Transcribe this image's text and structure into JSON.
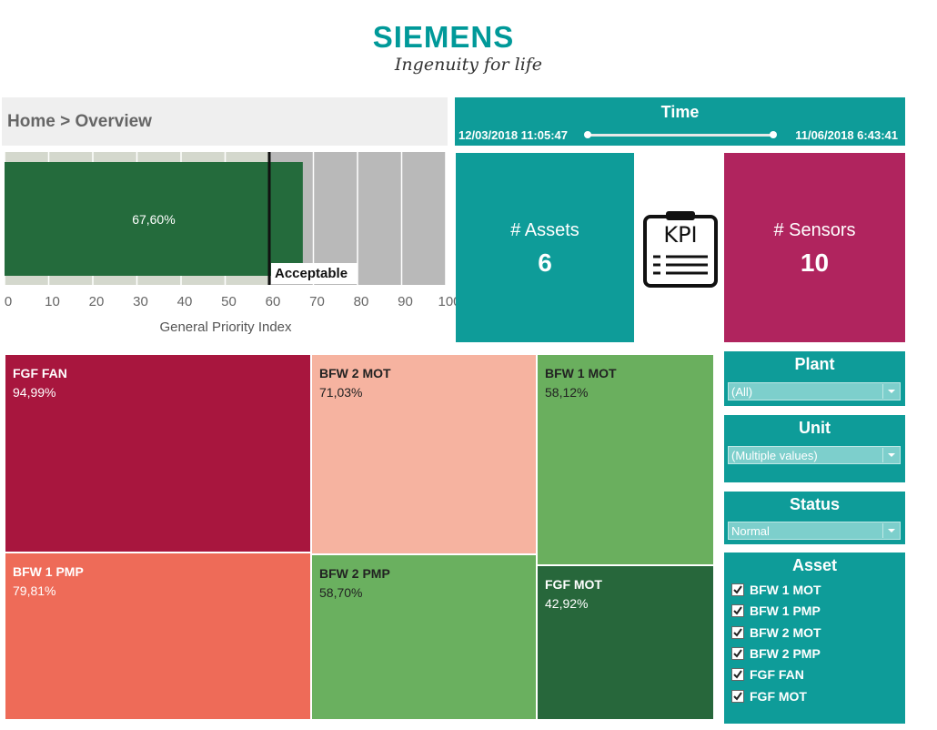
{
  "header": {
    "brand": "SIEMENS",
    "tagline": "Ingenuity for life"
  },
  "breadcrumb": "Home > Overview",
  "time": {
    "title": "Time",
    "start": "12/03/2018 11:05:47",
    "end": "11/06/2018 6:43:41"
  },
  "chart_data": {
    "type": "bullet",
    "value": 67.6,
    "value_label": "67,60%",
    "threshold": 60,
    "threshold_label": "Acceptable",
    "xlim": [
      0,
      100
    ],
    "xticks": [
      0,
      10,
      20,
      30,
      40,
      50,
      60,
      70,
      80,
      90,
      100
    ],
    "xlabel": "General Priority Index",
    "color": "#246b3c",
    "grid": true
  },
  "kpis": [
    {
      "label": "# Assets",
      "value": 6,
      "color": "#0e9c99"
    },
    {
      "label": "# Sensors",
      "value": 10,
      "color": "#b0245e"
    }
  ],
  "kpi_icon": "KPI",
  "treemap": [
    {
      "name": "FGF FAN",
      "value": 94.99,
      "value_label": "94,99%",
      "color": "#a8163e"
    },
    {
      "name": "BFW 2 MOT",
      "value": 71.03,
      "value_label": "71,03%",
      "color": "#f6b3a0"
    },
    {
      "name": "BFW 1 MOT",
      "value": 58.12,
      "value_label": "58,12%",
      "color": "#6aaf5e"
    },
    {
      "name": "BFW 1 PMP",
      "value": 79.81,
      "value_label": "79,81%",
      "color": "#ee6b58"
    },
    {
      "name": "BFW 2 PMP",
      "value": 58.7,
      "value_label": "58,70%",
      "color": "#6ab05f"
    },
    {
      "name": "FGF MOT",
      "value": 42.92,
      "value_label": "42,92%",
      "color": "#27673b"
    }
  ],
  "filters": {
    "plant": {
      "title": "Plant",
      "value": "(All)"
    },
    "unit": {
      "title": "Unit",
      "value": "(Multiple values)"
    },
    "status": {
      "title": "Status",
      "value": "Normal"
    },
    "asset": {
      "title": "Asset",
      "options": [
        "BFW 1 MOT",
        "BFW 1 PMP",
        "BFW 2 MOT",
        "BFW 2 PMP",
        "FGF FAN",
        "FGF MOT"
      ]
    }
  }
}
